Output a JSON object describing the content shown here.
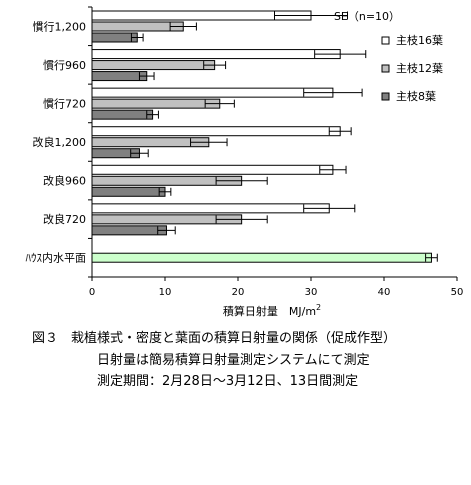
{
  "chart_data": {
    "type": "bar",
    "orientation": "horizontal",
    "title": "",
    "xlabel": "積算日射量　MJ/m",
    "xlabel_superscript": "2",
    "ylabel": "",
    "xlim": [
      0,
      50
    ],
    "xticks": [
      0,
      10,
      20,
      30,
      40,
      50
    ],
    "grid": false,
    "legend_placement": "right",
    "se_note": "SE（n=10）",
    "categories": [
      "慣行1,200",
      "慣行960",
      "慣行720",
      "改良1,200",
      "改良960",
      "改良720",
      "ﾊｳｽ内水平面"
    ],
    "series": [
      {
        "name": "主枝16葉",
        "color": "#ffffff",
        "values": [
          30.0,
          34.0,
          33.0,
          34.0,
          33.0,
          32.5,
          null
        ],
        "errors": [
          5.0,
          3.5,
          4.0,
          1.5,
          1.8,
          3.5,
          null
        ]
      },
      {
        "name": "主枝12葉",
        "color": "#c0c0c0",
        "values": [
          12.5,
          16.8,
          17.5,
          16.0,
          20.5,
          20.5,
          null
        ],
        "errors": [
          1.8,
          1.5,
          2.0,
          2.5,
          3.5,
          3.5,
          null
        ]
      },
      {
        "name": "主枝8葉",
        "color": "#808080",
        "values": [
          6.2,
          7.5,
          8.3,
          6.5,
          10.0,
          10.2,
          null
        ],
        "errors": [
          0.8,
          1.0,
          0.8,
          1.2,
          0.8,
          1.2,
          null
        ]
      },
      {
        "name": "",
        "color": "#ccffcc",
        "values": [
          null,
          null,
          null,
          null,
          null,
          null,
          46.5
        ],
        "errors": [
          null,
          null,
          null,
          null,
          null,
          null,
          0.8
        ]
      }
    ]
  },
  "caption": {
    "title": "図３　栽植様式・密度と葉面の積算日射量の関係（促成作型）",
    "line1": "日射量は簡易積算日射量測定システムにて測定",
    "line2": "測定期間：2月28日～3月12日、13日間測定"
  }
}
